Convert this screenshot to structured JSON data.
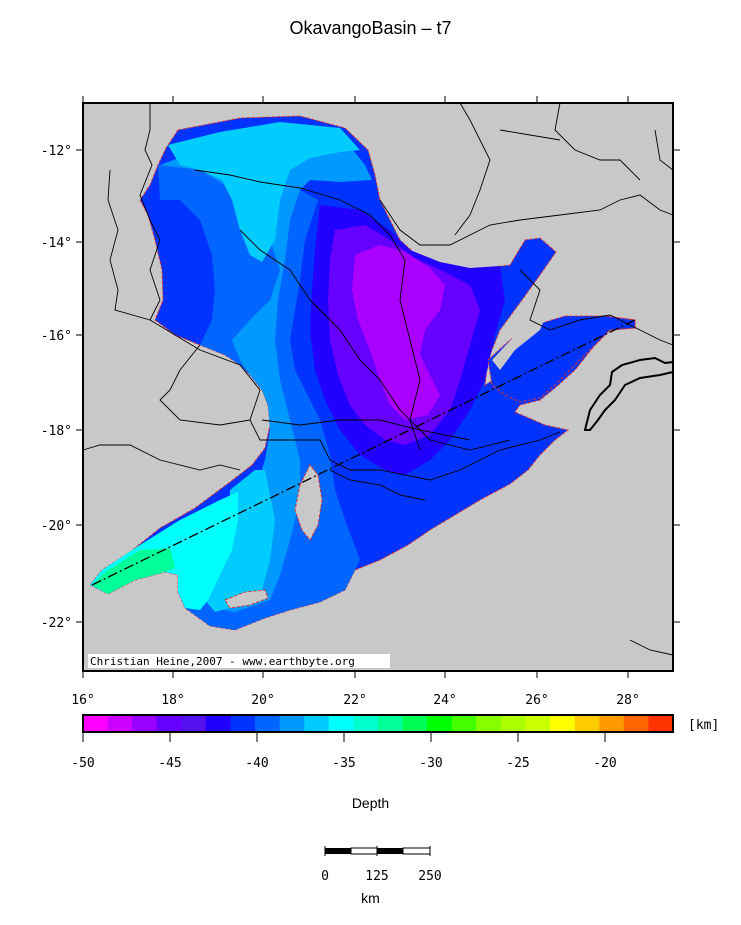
{
  "title": "OkavangoBasin – t7",
  "map": {
    "lat_ticks": [
      "-12°",
      "-14°",
      "-16°",
      "-18°",
      "-20°",
      "-22°"
    ],
    "lon_ticks": [
      "16°",
      "18°",
      "20°",
      "22°",
      "24°",
      "26°",
      "28°"
    ],
    "credit": "Christian Heine,2007 - www.earthbyte.org",
    "land_color": "#c8c8c8"
  },
  "colorbar": {
    "unit": "[km]",
    "tick_labels": [
      "-50",
      "-45",
      "-40",
      "-35",
      "-30",
      "-25",
      "-20"
    ],
    "label": "Depth",
    "colors": [
      "#ff00ff",
      "#cc00ff",
      "#9900ff",
      "#6600ff",
      "#5511ee",
      "#2200ff",
      "#0033ff",
      "#0066ff",
      "#0099ff",
      "#00ccff",
      "#00ffff",
      "#00ffcc",
      "#00ff99",
      "#00ff55",
      "#00ff00",
      "#44ff00",
      "#88ff00",
      "#aaff00",
      "#ccff00",
      "#ffff00",
      "#ffcc00",
      "#ff9900",
      "#ff6600",
      "#ff3300"
    ]
  },
  "scalebar": {
    "ticks": [
      "0",
      "125",
      "250"
    ],
    "unit": "km"
  }
}
